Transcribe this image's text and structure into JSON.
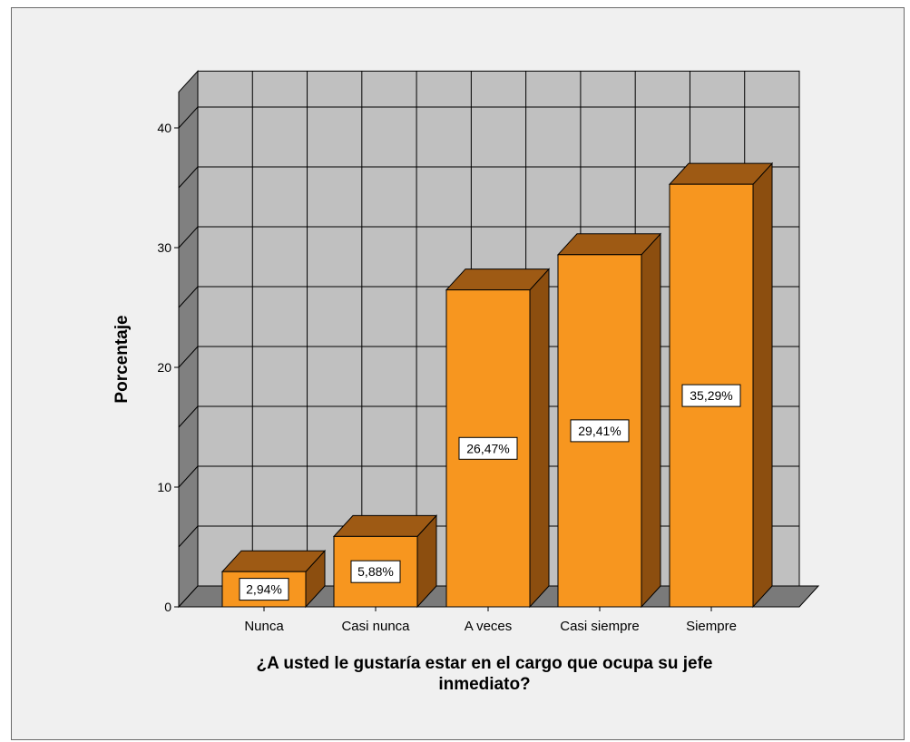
{
  "chart_data": {
    "type": "bar",
    "style": "3d",
    "categories": [
      "Nunca",
      "Casi nunca",
      "A veces",
      "Casi siempre",
      "Siempre"
    ],
    "values": [
      2.94,
      5.88,
      26.47,
      29.41,
      35.29
    ],
    "data_labels": [
      "2,94%",
      "5,88%",
      "26,47%",
      "29,41%",
      "35,29%"
    ],
    "title": "",
    "xlabel_lines": [
      "¿A usted le gustaría estar en el cargo que ocupa su jefe",
      "inmediato?"
    ],
    "ylabel": "Porcentaje",
    "ylim": [
      0,
      40
    ],
    "yticks": [
      "0",
      "10",
      "20",
      "30",
      "40"
    ],
    "grid": true,
    "colors": {
      "bar_front": "#f7961f",
      "bar_side": "#8c4e0f",
      "bar_top": "#9e5a14",
      "wall": "#c0c0c0",
      "wall_dark": "#808080",
      "floor": "#7a7a7a",
      "frame": "#f0f0f0"
    }
  }
}
